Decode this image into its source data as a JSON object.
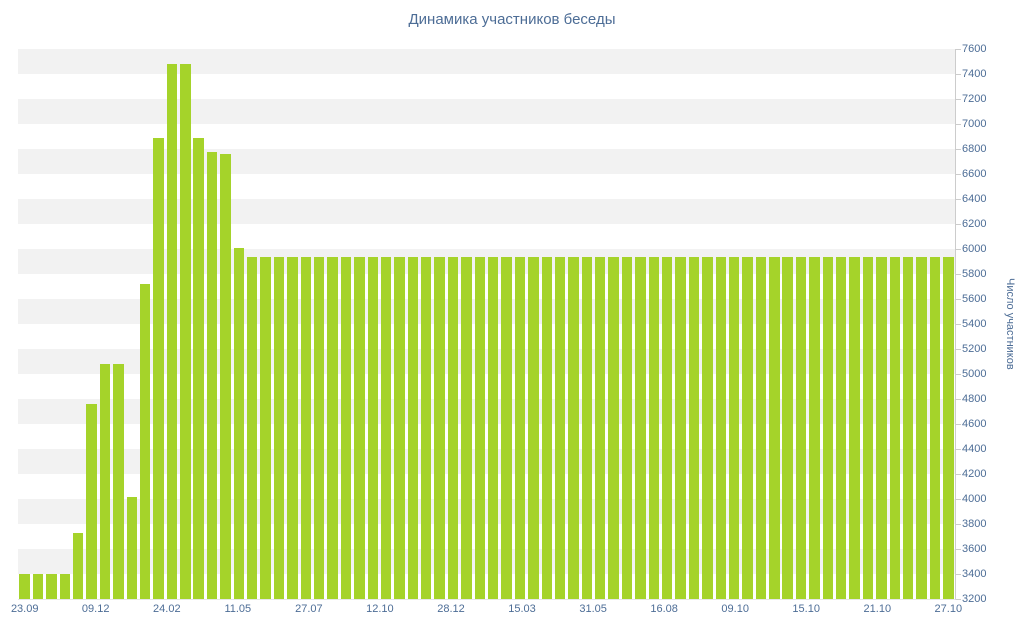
{
  "chart_data": {
    "type": "bar",
    "title": "Динамика участников беседы",
    "xlabel": "",
    "ylabel": "Число участников",
    "x_tick_labels": [
      "23.09",
      "09.12",
      "24.02",
      "11.05",
      "27.07",
      "12.10",
      "28.12",
      "15.03",
      "31.05",
      "16.08",
      "09.10",
      "15.10",
      "21.10",
      "27.10"
    ],
    "y_axis": {
      "min": 3200,
      "max": 7600,
      "step": 200
    },
    "ylim": [
      3200,
      7600
    ],
    "grid": "striped-horizontal-bands",
    "legend_position": "none",
    "values": [
      3400,
      3400,
      3400,
      3400,
      3730,
      4760,
      5080,
      5080,
      4020,
      5720,
      6890,
      7480,
      7480,
      6890,
      6780,
      6760,
      6010,
      5940,
      5940,
      5940,
      5940,
      5940,
      5940,
      5940,
      5940,
      5940,
      5940,
      5940,
      5940,
      5940,
      5940,
      5940,
      5940,
      5940,
      5940,
      5940,
      5940,
      5940,
      5940,
      5940,
      5940,
      5940,
      5940,
      5940,
      5940,
      5940,
      5940,
      5940,
      5940,
      5940,
      5940,
      5940,
      5940,
      5940,
      5940,
      5940,
      5940,
      5940,
      5940,
      5940,
      5940,
      5940,
      5940,
      5940,
      5940,
      5940,
      5940,
      5940,
      5940,
      5940
    ],
    "bar_color": "#a5d32a",
    "text_color": "#4d6d96",
    "stripe_color": "#f2f2f2",
    "axis_line_color": "#cccccc"
  }
}
